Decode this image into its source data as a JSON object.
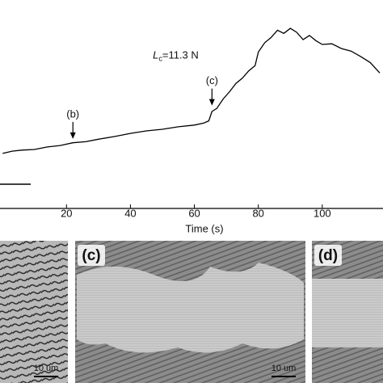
{
  "chart_data": {
    "type": "line",
    "x_label": "Time (s)",
    "x": [
      0,
      3,
      6,
      10,
      14,
      18,
      22,
      26,
      30,
      35,
      40,
      45,
      50,
      55,
      60,
      63,
      64.5,
      65.5,
      67,
      69,
      71,
      73,
      75,
      77,
      79,
      80,
      82,
      84,
      86,
      88,
      90,
      92,
      94,
      96,
      98,
      100,
      103,
      106,
      109,
      112,
      115,
      118
    ],
    "series": [
      {
        "color": "#000000",
        "values": [
          26.4,
          27.5,
          28.0,
          28.3,
          29.5,
          30.2,
          31.5,
          32.0,
          33.2,
          34.5,
          36.0,
          37.2,
          38.0,
          39.2,
          40.0,
          41.0,
          42.0,
          46.5,
          48.0,
          52.5,
          56.0,
          60.0,
          62.5,
          66.0,
          68.5,
          75.0,
          79.5,
          82.0,
          85.5,
          84.0,
          86.4,
          84.5,
          81.0,
          83.0,
          80.5,
          78.7,
          79.0,
          76.7,
          75.5,
          72.9,
          70.0,
          65.0
        ]
      }
    ],
    "xlim": [
      -0.8,
      119
    ],
    "ylim": [
      0,
      100
    ],
    "xticks": [
      20,
      40,
      60,
      80,
      100
    ],
    "annotations": [
      {
        "text": "(b)",
        "x": 22,
        "y": 45
      },
      {
        "text": "(c)",
        "x": 65.5,
        "y": 61
      }
    ],
    "critical_load": {
      "symbol": "L",
      "subscript": "c",
      "text": "=11.3 N",
      "x": 47,
      "y": 73
    }
  },
  "images": [
    {
      "scale_bar": "10 um"
    },
    {
      "label": "(c)",
      "scale_bar": "10 um"
    },
    {
      "label": "(d)"
    }
  ]
}
